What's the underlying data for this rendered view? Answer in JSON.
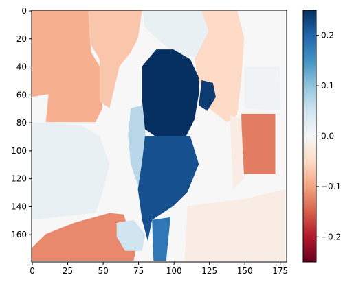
{
  "chart_data": {
    "type": "heatmap",
    "title": "",
    "xlabel": "",
    "ylabel": "",
    "x_range": [
      0,
      179
    ],
    "y_range": [
      0,
      179
    ],
    "y_inverted": true,
    "x_ticks": [
      0,
      25,
      50,
      75,
      100,
      125,
      150,
      175
    ],
    "y_ticks": [
      0,
      20,
      40,
      60,
      80,
      100,
      120,
      140,
      160
    ],
    "grid": false,
    "colormap": "RdBu",
    "color_range": [
      -0.25,
      0.25
    ],
    "colorbar_ticks": [
      0.2,
      0.1,
      0.0,
      -0.1,
      -0.2
    ],
    "colors": {
      "strong_negative": "#67001f",
      "negative": "#e07a5e",
      "light_negative": "#f3a585",
      "zero": "#f7f7f7",
      "light_positive": "#d6e8f1",
      "positive": "#4a8fc1",
      "strong_positive": "#053061"
    },
    "regions": [
      {
        "name": "background",
        "value": 0.0
      },
      {
        "name": "upper-left",
        "value": -0.09
      },
      {
        "name": "upper-middle-left",
        "value": -0.07
      },
      {
        "name": "upper-center-light",
        "value": 0.02
      },
      {
        "name": "upper-right",
        "value": -0.05
      },
      {
        "name": "center-body",
        "value": 0.25
      },
      {
        "name": "center-lower",
        "value": 0.22
      },
      {
        "name": "center-left-strip",
        "value": 0.07
      },
      {
        "name": "left-middle",
        "value": 0.02
      },
      {
        "name": "right-block",
        "value": -0.13
      },
      {
        "name": "bottom-left",
        "value": -0.12
      },
      {
        "name": "bottom-center-light",
        "value": 0.05
      },
      {
        "name": "bottom-right",
        "value": -0.02
      }
    ]
  }
}
